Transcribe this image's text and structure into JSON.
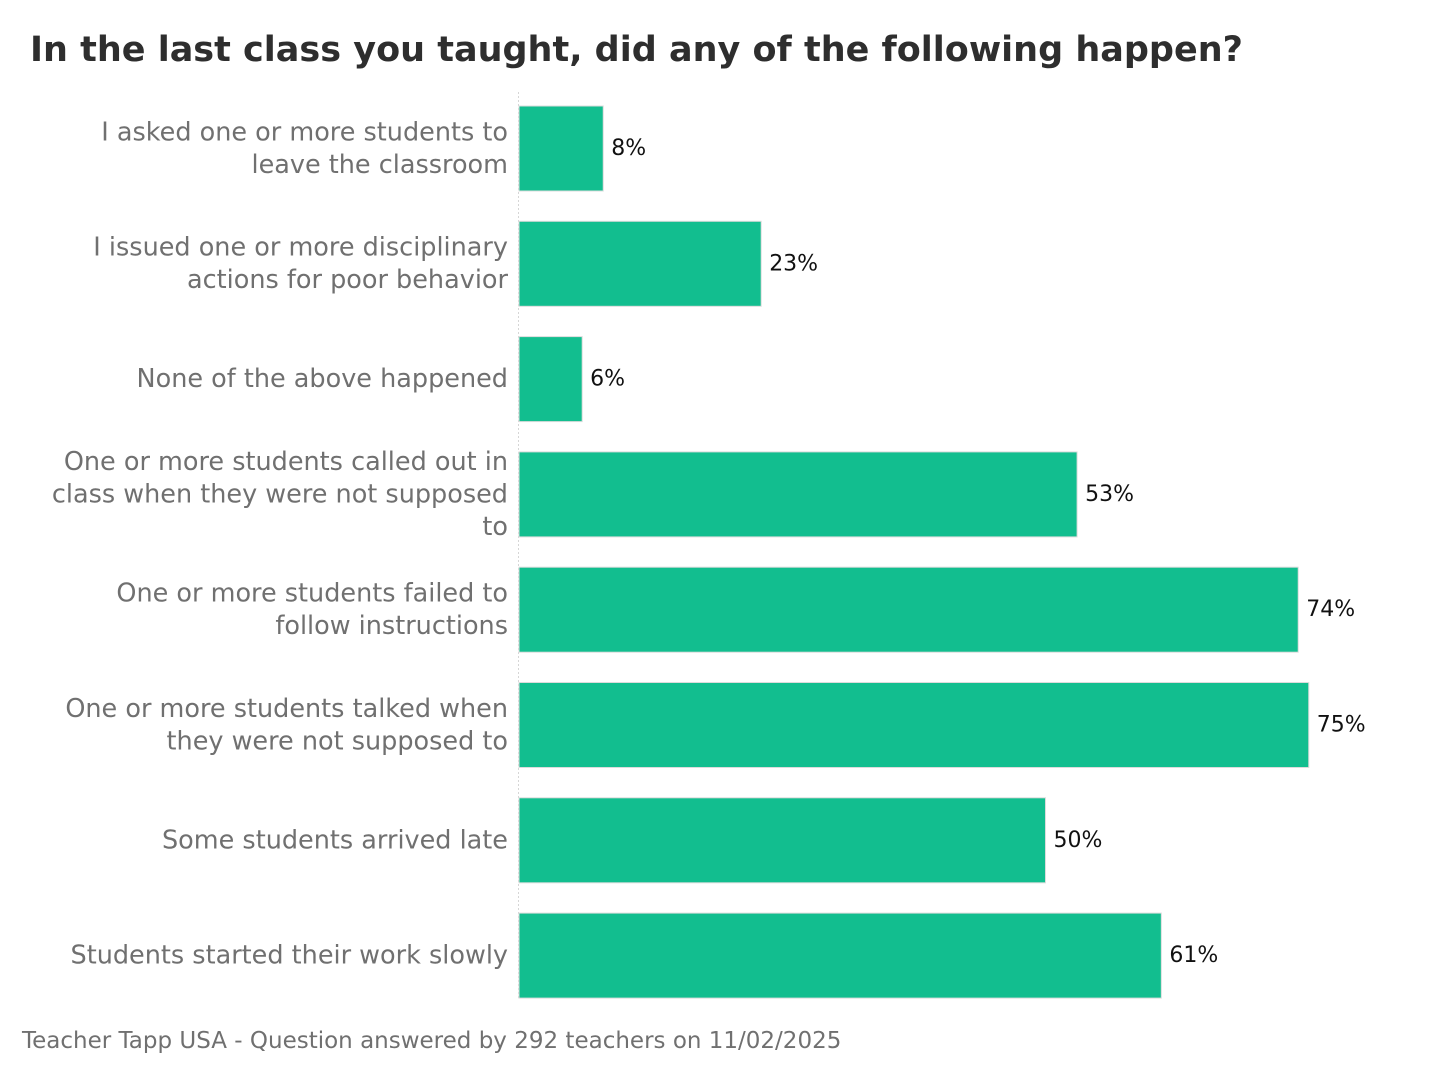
{
  "chart_data": {
    "type": "bar",
    "orientation": "horizontal",
    "title": "In the last class you taught, did any of the following happen?",
    "categories": [
      [
        "I asked one or more students to",
        "leave the classroom"
      ],
      [
        "I issued one or more disciplinary",
        "actions for poor behavior"
      ],
      [
        "None of the above happened"
      ],
      [
        "One or more students called out in",
        "class when they were not supposed",
        "to"
      ],
      [
        "One or more students failed to",
        "follow instructions"
      ],
      [
        "One or more students talked when",
        "they were not supposed to"
      ],
      [
        "Some students arrived late"
      ],
      [
        "Students started their work slowly"
      ]
    ],
    "values": [
      8,
      23,
      6,
      53,
      74,
      75,
      50,
      61
    ],
    "value_labels": [
      "8%",
      "23%",
      "6%",
      "53%",
      "74%",
      "75%",
      "50%",
      "61%"
    ],
    "unit": "%",
    "xlim": [
      0,
      80
    ],
    "xlabel": "",
    "ylabel": "",
    "grid": false,
    "legend": "none",
    "bar_color": "#12be8f",
    "category_label_color": "#707070",
    "value_label_color": "#111111",
    "title_color": "#2e2e2e"
  },
  "footer": {
    "text": "Teacher Tapp USA - Question answered by 292 teachers on 11/02/2025"
  }
}
